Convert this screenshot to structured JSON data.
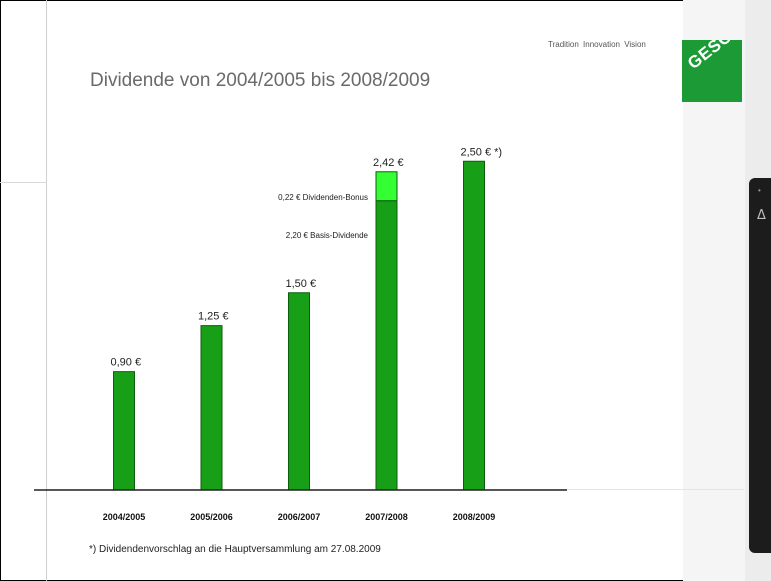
{
  "slide": {
    "title": "Dividende von 2004/2005 bis 2008/2009",
    "tagline": "Tradition  Innovation  Vision",
    "logo_text": "GESCO",
    "footnote": "*) Dividendenvorschlag an die Hauptversammlung am 27.08.2009"
  },
  "colors": {
    "bar": "#17a017",
    "bonus": "#33ff33",
    "bar_stroke": "#0b5e0b",
    "logo": "#1b9a35"
  },
  "chart_data": {
    "type": "bar",
    "title": "Dividende von 2004/2005 bis 2008/2009",
    "xlabel": "",
    "ylabel": "",
    "ylim": [
      0,
      2.6
    ],
    "grid": false,
    "categories": [
      "2004/2005",
      "2005/2006",
      "2006/2007",
      "2007/2008",
      "2008/2009"
    ],
    "series": [
      {
        "name": "Basis-Dividende",
        "values": [
          0.9,
          1.25,
          1.5,
          2.2,
          2.5
        ]
      },
      {
        "name": "Dividenden-Bonus",
        "values": [
          0,
          0,
          0,
          0.22,
          0
        ]
      }
    ],
    "data_labels": [
      "0,90 €",
      "1,25 €",
      "1,50 €",
      "2,42 €",
      "2,50 € *)"
    ],
    "annotations": [
      "0,22 € Dividenden-Bonus",
      "2,20 € Basis-Dividende"
    ]
  }
}
